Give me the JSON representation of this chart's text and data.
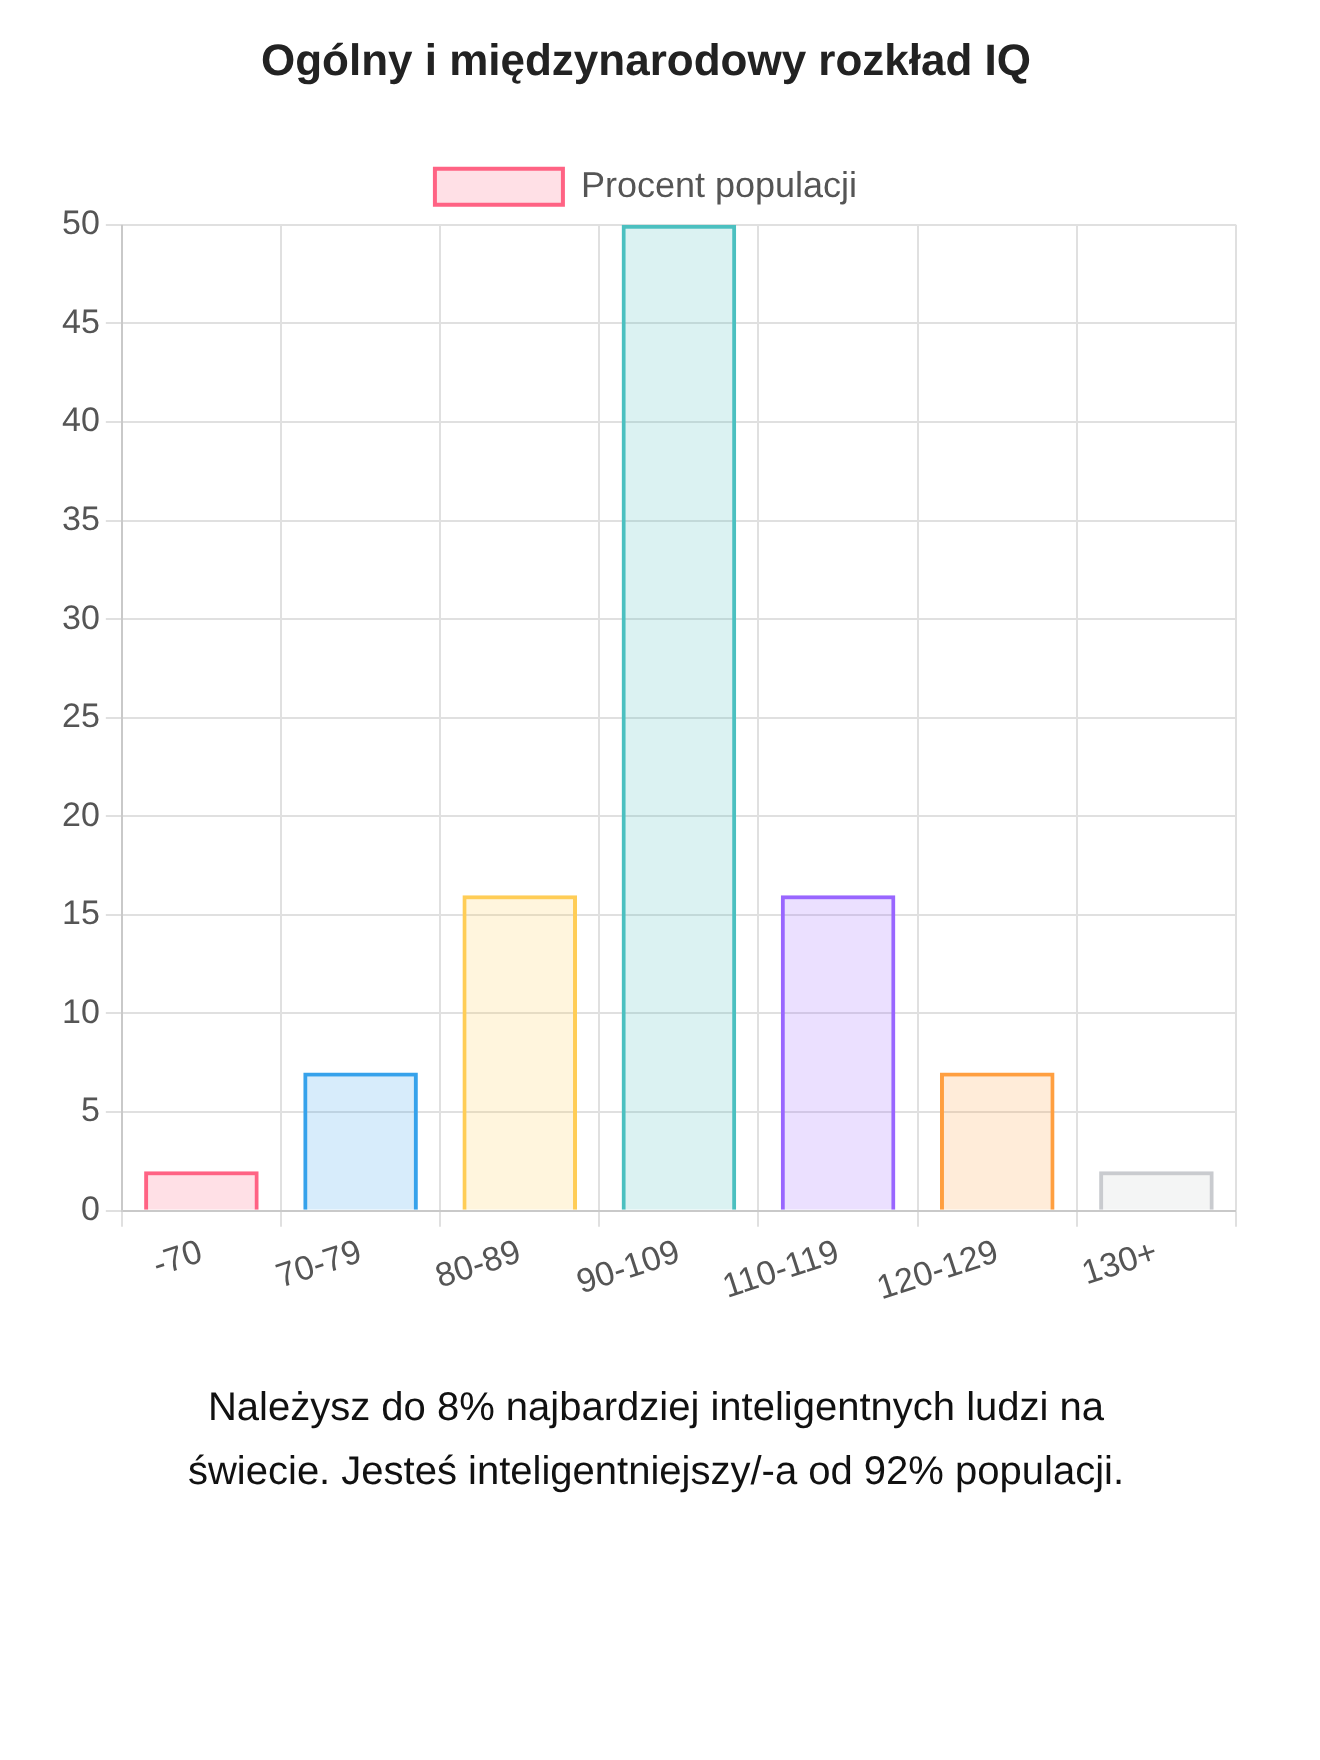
{
  "chart_data": {
    "type": "bar",
    "title": "Ogólny i międzynarodowy rozkład IQ",
    "categories": [
      "-70",
      "70-79",
      "80-89",
      "90-109",
      "110-119",
      "120-129",
      "130+"
    ],
    "series": [
      {
        "name": "Procent populacji",
        "values": [
          2,
          7,
          16,
          50,
          16,
          7,
          2
        ],
        "colors": [
          "#ff6384",
          "#36a2eb",
          "#ffcd56",
          "#4bc0c0",
          "#9966ff",
          "#ff9f40",
          "#c9cbcf"
        ]
      }
    ],
    "ylim": [
      0,
      50
    ],
    "yticks": [
      0,
      5,
      10,
      15,
      20,
      25,
      30,
      35,
      40,
      45,
      50
    ],
    "grid": true,
    "legend": "top",
    "annotations": [
      "Należysz do 8% najbardziej inteligentnych ludzi na świecie. Jesteś inteligentniejszy/-a od 92% populacji."
    ]
  }
}
